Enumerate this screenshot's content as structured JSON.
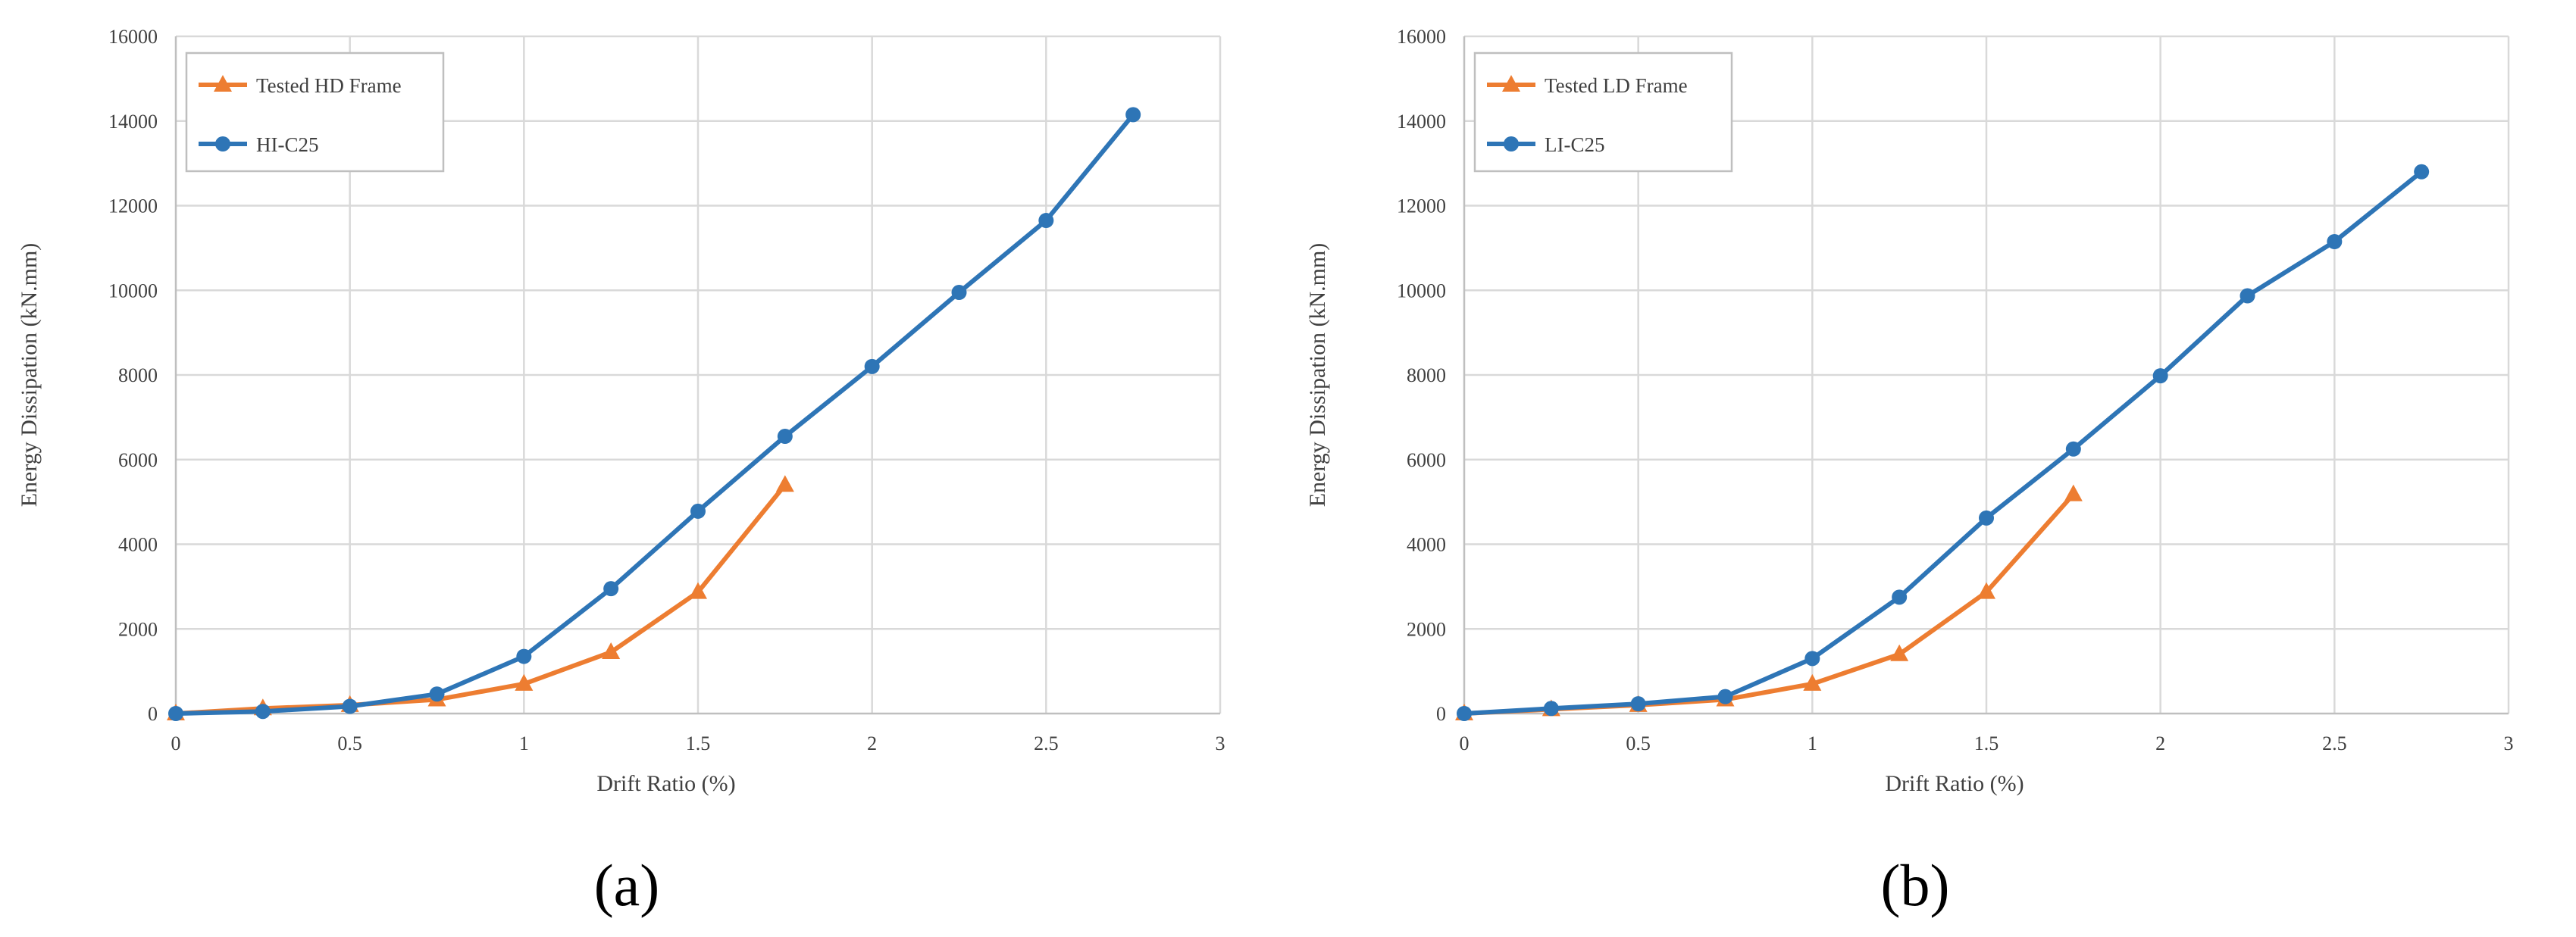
{
  "colors": {
    "tested": "#ED7D31",
    "model": "#2E75B6",
    "grid": "#D9D9D9",
    "axis": "#BFBFBF"
  },
  "chart_data": [
    {
      "type": "line",
      "caption": "(a)",
      "xlabel": "Drift Ratio (%)",
      "ylabel": "Energy Dissipation (kN.mm)",
      "xlim": [
        0,
        3
      ],
      "ylim": [
        0,
        16000
      ],
      "xticks": [
        "0",
        "0.5",
        "1",
        "1.5",
        "2",
        "2.5",
        "3"
      ],
      "yticks": [
        "0",
        "2000",
        "4000",
        "6000",
        "8000",
        "10000",
        "12000",
        "14000",
        "16000"
      ],
      "grid": true,
      "legend_position": "top-left",
      "series": [
        {
          "name": "Tested HD Frame",
          "marker": "triangle",
          "x": [
            0,
            0.25,
            0.5,
            0.75,
            1,
            1.25,
            1.5,
            1.75
          ],
          "y": [
            0,
            120,
            200,
            330,
            700,
            1450,
            2870,
            5400
          ]
        },
        {
          "name": "HI-C25",
          "marker": "circle",
          "x": [
            0,
            0.25,
            0.5,
            0.75,
            1,
            1.25,
            1.5,
            1.75,
            2,
            2.25,
            2.5,
            2.75
          ],
          "y": [
            0,
            50,
            170,
            460,
            1350,
            2950,
            4780,
            6550,
            8200,
            9950,
            11650,
            14150
          ]
        }
      ]
    },
    {
      "type": "line",
      "caption": "(b)",
      "xlabel": "Drift Ratio (%)",
      "ylabel": "Energy Dissipation (kN.mm)",
      "xlim": [
        0,
        3
      ],
      "ylim": [
        0,
        16000
      ],
      "xticks": [
        "0",
        "0.5",
        "1",
        "1.5",
        "2",
        "2.5",
        "3"
      ],
      "yticks": [
        "0",
        "2000",
        "4000",
        "6000",
        "8000",
        "10000",
        "12000",
        "14000",
        "16000"
      ],
      "grid": true,
      "legend_position": "top-left",
      "series": [
        {
          "name": "Tested LD Frame",
          "marker": "triangle",
          "x": [
            0,
            0.25,
            0.5,
            0.75,
            1,
            1.25,
            1.5,
            1.75
          ],
          "y": [
            0,
            100,
            200,
            330,
            700,
            1400,
            2870,
            5180
          ]
        },
        {
          "name": "LI-C25",
          "marker": "circle",
          "x": [
            0,
            0.25,
            0.5,
            0.75,
            1,
            1.25,
            1.5,
            1.75,
            2,
            2.25,
            2.5,
            2.75
          ],
          "y": [
            0,
            120,
            230,
            400,
            1300,
            2750,
            4620,
            6250,
            7980,
            9870,
            11150,
            12800
          ]
        }
      ]
    }
  ]
}
